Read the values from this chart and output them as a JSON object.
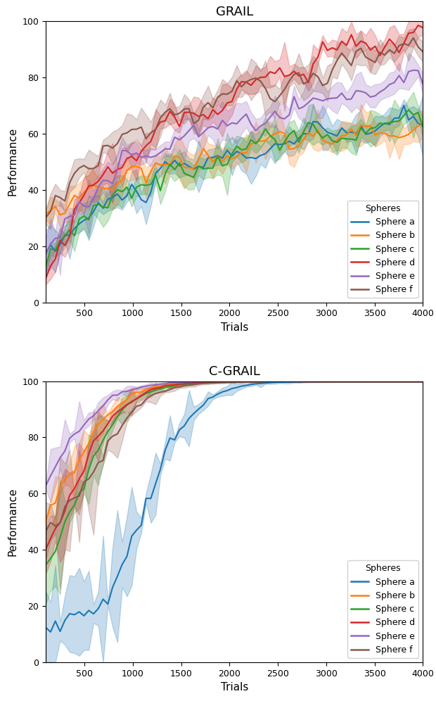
{
  "title1": "GRAIL",
  "title2": "C-GRAIL",
  "xlabel": "Trials",
  "ylabel": "Performance",
  "ylim": [
    0,
    100
  ],
  "xlim": [
    100,
    4000
  ],
  "xticks": [
    500,
    1000,
    1500,
    2000,
    2500,
    3000,
    3500,
    4000
  ],
  "yticks": [
    0,
    20,
    40,
    60,
    80,
    100
  ],
  "legend_title": "Spheres",
  "sphere_labels": [
    "Sphere a",
    "Sphere b",
    "Sphere c",
    "Sphere d",
    "Sphere e",
    "Sphere f"
  ],
  "colors": [
    "#1f77b4",
    "#ff7f0e",
    "#2ca02c",
    "#d62728",
    "#9467bd",
    "#8c564b"
  ],
  "alpha_fill": 0.25,
  "n_points": 80
}
